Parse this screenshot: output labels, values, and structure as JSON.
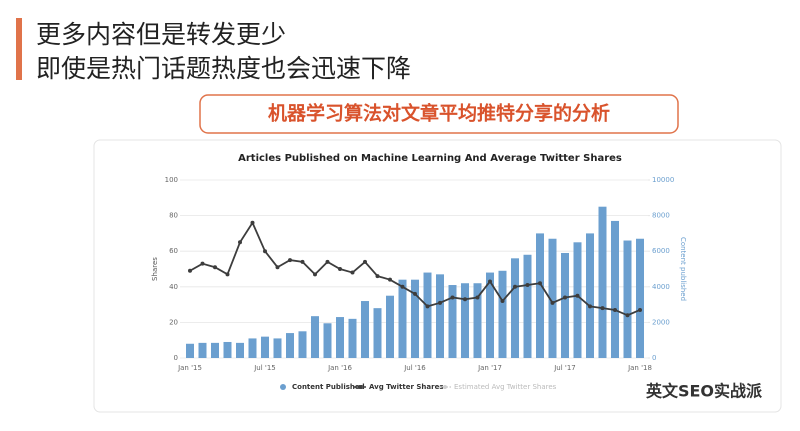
{
  "slide": {
    "title_lines": [
      "更多内容但是转发更少",
      "即使是热门话题热度也会迅速下降"
    ],
    "subtitle": "机器学习算法对文章平均推特分享的分析",
    "watermark": "英文SEO实战派"
  },
  "chart_data": {
    "type": "bar_line",
    "title": "Articles Published on Machine Learning And Average Twitter Shares",
    "y_label": "Shares",
    "y2_label": "Content published",
    "categories": [
      "Jan '15",
      null,
      null,
      null,
      null,
      null,
      "Jul '15",
      null,
      null,
      null,
      null,
      null,
      "Jan '16",
      null,
      null,
      null,
      null,
      null,
      "Jul '16",
      null,
      null,
      null,
      null,
      null,
      "Jan '17",
      null,
      null,
      null,
      null,
      null,
      "Jul '17",
      null,
      null,
      null,
      null,
      null,
      "Jan '18"
    ],
    "ylim": [
      0,
      100
    ],
    "yticks": [
      0,
      20,
      40,
      60,
      80,
      100
    ],
    "y2lim": [
      0,
      10000
    ],
    "y2ticks": [
      0,
      2000,
      4000,
      6000,
      8000,
      10000
    ],
    "series": [
      {
        "name": "Content Published",
        "type": "bar",
        "axis": "y2",
        "color": "#6b9fcf",
        "values": [
          800,
          850,
          850,
          900,
          850,
          1100,
          1200,
          1100,
          1400,
          1500,
          2350,
          1950,
          2300,
          2200,
          3200,
          2800,
          3500,
          4400,
          4400,
          4800,
          4700,
          4100,
          4200,
          4200,
          4800,
          4900,
          5600,
          5800,
          7000,
          6700,
          5900,
          6500,
          7000,
          8500,
          7700,
          6600,
          6700
        ]
      },
      {
        "name": "Avg Twitter Shares",
        "type": "line",
        "color": "#3d3d3d",
        "values": [
          49,
          53,
          51,
          47,
          65,
          76,
          60,
          51,
          55,
          54,
          47,
          54,
          50,
          48,
          54,
          46,
          44,
          40,
          36,
          29,
          31,
          34,
          33,
          34,
          43,
          32,
          40,
          41,
          42,
          31,
          34,
          35,
          29,
          28,
          27,
          24,
          27
        ]
      },
      {
        "name": "Estimated Avg Twitter Shares",
        "type": "line",
        "dashed": true,
        "color": "#cfcfcf",
        "values": [
          null,
          null,
          null,
          null,
          null,
          null,
          null,
          null,
          null,
          null,
          null,
          null,
          null,
          null,
          null,
          null,
          null,
          null,
          null,
          null,
          null,
          null,
          null,
          null,
          null,
          null,
          null,
          null,
          null,
          null,
          null,
          null,
          null,
          null,
          null,
          null,
          null
        ]
      }
    ]
  }
}
